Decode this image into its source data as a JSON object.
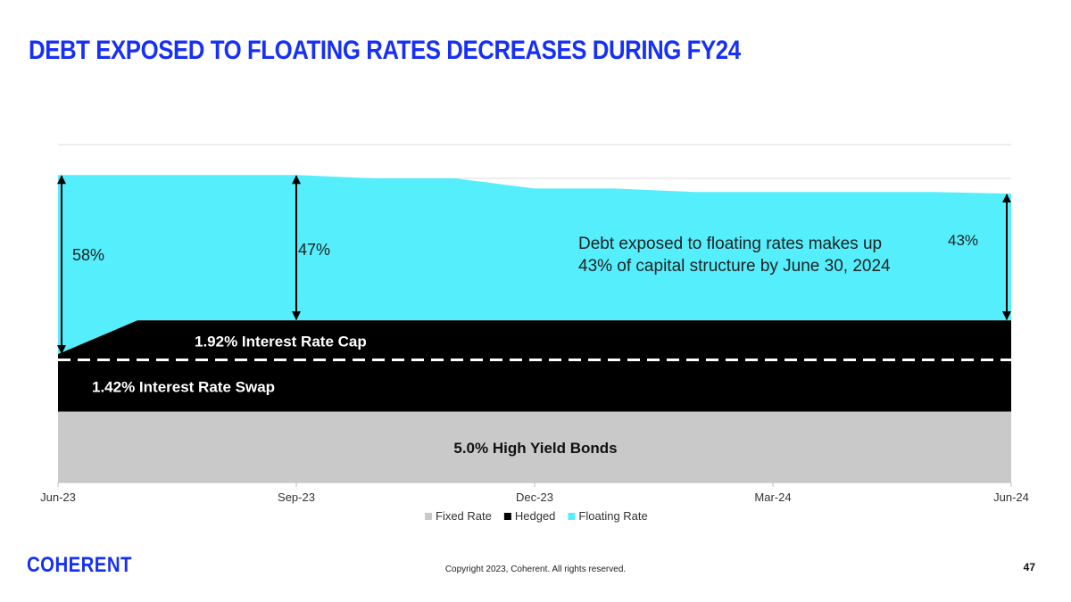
{
  "slide": {
    "title": "DEBT EXPOSED TO FLOATING RATES DECREASES DURING FY24",
    "logo_text": "COHERENT",
    "copyright": "Copyright 2023, Coherent. All rights reserved.",
    "page_number": "47"
  },
  "colors": {
    "title": "#1730f5",
    "fixed": "#c9c9c9",
    "hedged": "#000000",
    "floating": "#55eefc"
  },
  "chart_data": {
    "type": "area",
    "stacked": true,
    "categories": [
      "Jun-23",
      "Sep-23",
      "Dec-23",
      "Mar-24",
      "Jun-24"
    ],
    "x": [
      0,
      1,
      2,
      3,
      4,
      5,
      6,
      7,
      8,
      9,
      10,
      11,
      12
    ],
    "series": [
      {
        "name": "Fixed Rate",
        "color": "#c9c9c9",
        "values": [
          21,
          21,
          21,
          21,
          21,
          21,
          21,
          21,
          21,
          21,
          21,
          21,
          21
        ]
      },
      {
        "name": "Hedged",
        "color": "#000000",
        "values": [
          17,
          27,
          27,
          27,
          27,
          27,
          27,
          27,
          27,
          27,
          27,
          27,
          27
        ]
      },
      {
        "name": "Floating Rate",
        "color": "#55eefc",
        "values": [
          53,
          43,
          43,
          43,
          42,
          42,
          39,
          39,
          38,
          38,
          38,
          38,
          37.5
        ]
      }
    ],
    "ylim": [
      0,
      104
    ],
    "grid": true,
    "legend": "bottom",
    "dashed_line_value": 36.3,
    "annotations": {
      "swap_label": "1.42% Interest Rate Swap",
      "cap_label": "1.92% Interest Rate Cap",
      "bonds_label": "5.0% High Yield Bonds",
      "pct_start": "58%",
      "pct_sep": "47%",
      "pct_end": "43%",
      "note_line1": "Debt exposed to floating rates makes up",
      "note_line2": "43% of capital structure by June 30, 2024"
    }
  }
}
